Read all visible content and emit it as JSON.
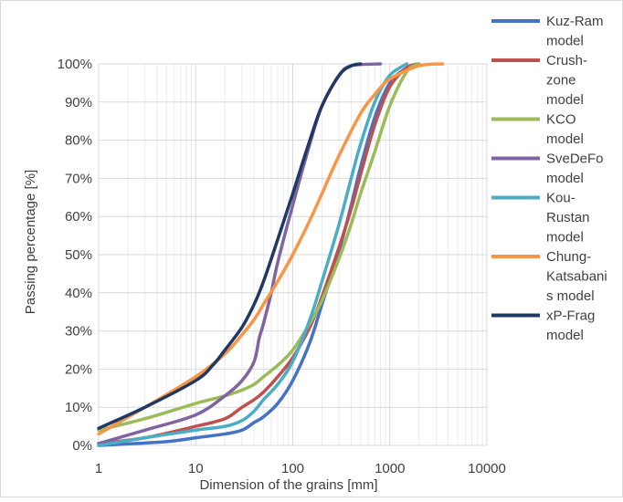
{
  "chart_data": {
    "type": "line",
    "xscale": "log",
    "xlim": [
      1,
      10000
    ],
    "ylim": [
      0,
      100
    ],
    "xlabel": "Dimension of the grains [mm]",
    "ylabel": "Passing percentage [%]",
    "x_ticks": [
      "1",
      "10",
      "100",
      "1000",
      "10000"
    ],
    "y_ticks": [
      "0%",
      "10%",
      "20%",
      "30%",
      "40%",
      "50%",
      "60%",
      "70%",
      "80%",
      "90%",
      "100%"
    ],
    "grid": true,
    "legend_position": "right",
    "series": [
      {
        "name": "Kuz-Ram model",
        "legend_lines": [
          "Kuz-Ram",
          "model"
        ],
        "color": "#4472C4",
        "points": [
          [
            1,
            0
          ],
          [
            5,
            1
          ],
          [
            10,
            2
          ],
          [
            20,
            3
          ],
          [
            30,
            4
          ],
          [
            40,
            6
          ],
          [
            50,
            7.5
          ],
          [
            70,
            11
          ],
          [
            100,
            17
          ],
          [
            150,
            27
          ],
          [
            200,
            37
          ],
          [
            300,
            51
          ],
          [
            400,
            63
          ],
          [
            500,
            73
          ],
          [
            700,
            86
          ],
          [
            1000,
            95
          ],
          [
            1500,
            99
          ],
          [
            2000,
            100
          ]
        ]
      },
      {
        "name": "Crush-zone model",
        "legend_lines": [
          "Crush-",
          "zone",
          "model"
        ],
        "color": "#C0504D",
        "points": [
          [
            1,
            0.5
          ],
          [
            3,
            2
          ],
          [
            10,
            5
          ],
          [
            20,
            7
          ],
          [
            30,
            10
          ],
          [
            40,
            12
          ],
          [
            50,
            14
          ],
          [
            70,
            18
          ],
          [
            100,
            23
          ],
          [
            150,
            31
          ],
          [
            200,
            39
          ],
          [
            300,
            52
          ],
          [
            400,
            62
          ],
          [
            500,
            71
          ],
          [
            700,
            84
          ],
          [
            1000,
            94
          ],
          [
            1500,
            99
          ],
          [
            2000,
            100
          ]
        ]
      },
      {
        "name": "KCO model",
        "legend_lines": [
          "KCO",
          "model"
        ],
        "color": "#9BBB59",
        "points": [
          [
            1,
            4
          ],
          [
            3,
            7
          ],
          [
            10,
            11
          ],
          [
            20,
            13
          ],
          [
            30,
            14.5
          ],
          [
            40,
            16
          ],
          [
            50,
            18
          ],
          [
            70,
            21
          ],
          [
            100,
            25
          ],
          [
            150,
            32
          ],
          [
            200,
            38
          ],
          [
            300,
            49
          ],
          [
            400,
            58
          ],
          [
            500,
            66
          ],
          [
            700,
            77
          ],
          [
            1000,
            89
          ],
          [
            1500,
            98
          ],
          [
            2000,
            100
          ]
        ]
      },
      {
        "name": "SveDeFo model",
        "legend_lines": [
          "SveDeFo",
          "model"
        ],
        "color": "#8064A2",
        "points": [
          [
            1,
            0.5
          ],
          [
            3,
            4
          ],
          [
            10,
            8
          ],
          [
            20,
            13
          ],
          [
            30,
            17
          ],
          [
            40,
            22
          ],
          [
            45,
            28
          ],
          [
            50,
            32
          ],
          [
            60,
            40
          ],
          [
            70,
            48
          ],
          [
            100,
            63
          ],
          [
            150,
            79
          ],
          [
            200,
            89
          ],
          [
            300,
            97
          ],
          [
            400,
            99.5
          ],
          [
            800,
            100
          ]
        ]
      },
      {
        "name": "Kou-Rustan model",
        "legend_lines": [
          "Kou-",
          "Rustan",
          "model"
        ],
        "color": "#4BACC6",
        "points": [
          [
            1,
            0
          ],
          [
            3,
            2
          ],
          [
            10,
            4
          ],
          [
            20,
            5
          ],
          [
            30,
            6.5
          ],
          [
            40,
            9
          ],
          [
            50,
            12
          ],
          [
            70,
            16
          ],
          [
            100,
            22
          ],
          [
            150,
            33
          ],
          [
            200,
            43
          ],
          [
            300,
            58
          ],
          [
            400,
            70
          ],
          [
            500,
            79
          ],
          [
            700,
            90
          ],
          [
            1000,
            97
          ],
          [
            1500,
            100
          ]
        ]
      },
      {
        "name": "Chung-Katsabanis model",
        "legend_lines": [
          "Chung-",
          "Katsabani",
          "s model"
        ],
        "color": "#F79646",
        "points": [
          [
            1,
            3
          ],
          [
            3,
            10
          ],
          [
            10,
            18
          ],
          [
            20,
            24
          ],
          [
            30,
            29
          ],
          [
            40,
            33
          ],
          [
            50,
            37
          ],
          [
            70,
            43
          ],
          [
            100,
            50
          ],
          [
            150,
            59
          ],
          [
            200,
            66
          ],
          [
            300,
            76
          ],
          [
            500,
            87
          ],
          [
            700,
            92
          ],
          [
            1000,
            96
          ],
          [
            2000,
            99.5
          ],
          [
            3500,
            100
          ]
        ]
      },
      {
        "name": "xP-Frag model",
        "legend_lines": [
          "xP-Frag",
          "model"
        ],
        "color": "#1F3864",
        "points": [
          [
            1,
            4.5
          ],
          [
            3,
            10
          ],
          [
            10,
            17
          ],
          [
            15,
            21
          ],
          [
            20,
            25
          ],
          [
            30,
            31
          ],
          [
            40,
            37
          ],
          [
            50,
            43
          ],
          [
            70,
            54
          ],
          [
            100,
            66
          ],
          [
            150,
            80
          ],
          [
            200,
            89
          ],
          [
            300,
            97
          ],
          [
            400,
            99.5
          ],
          [
            500,
            100
          ]
        ]
      }
    ]
  }
}
